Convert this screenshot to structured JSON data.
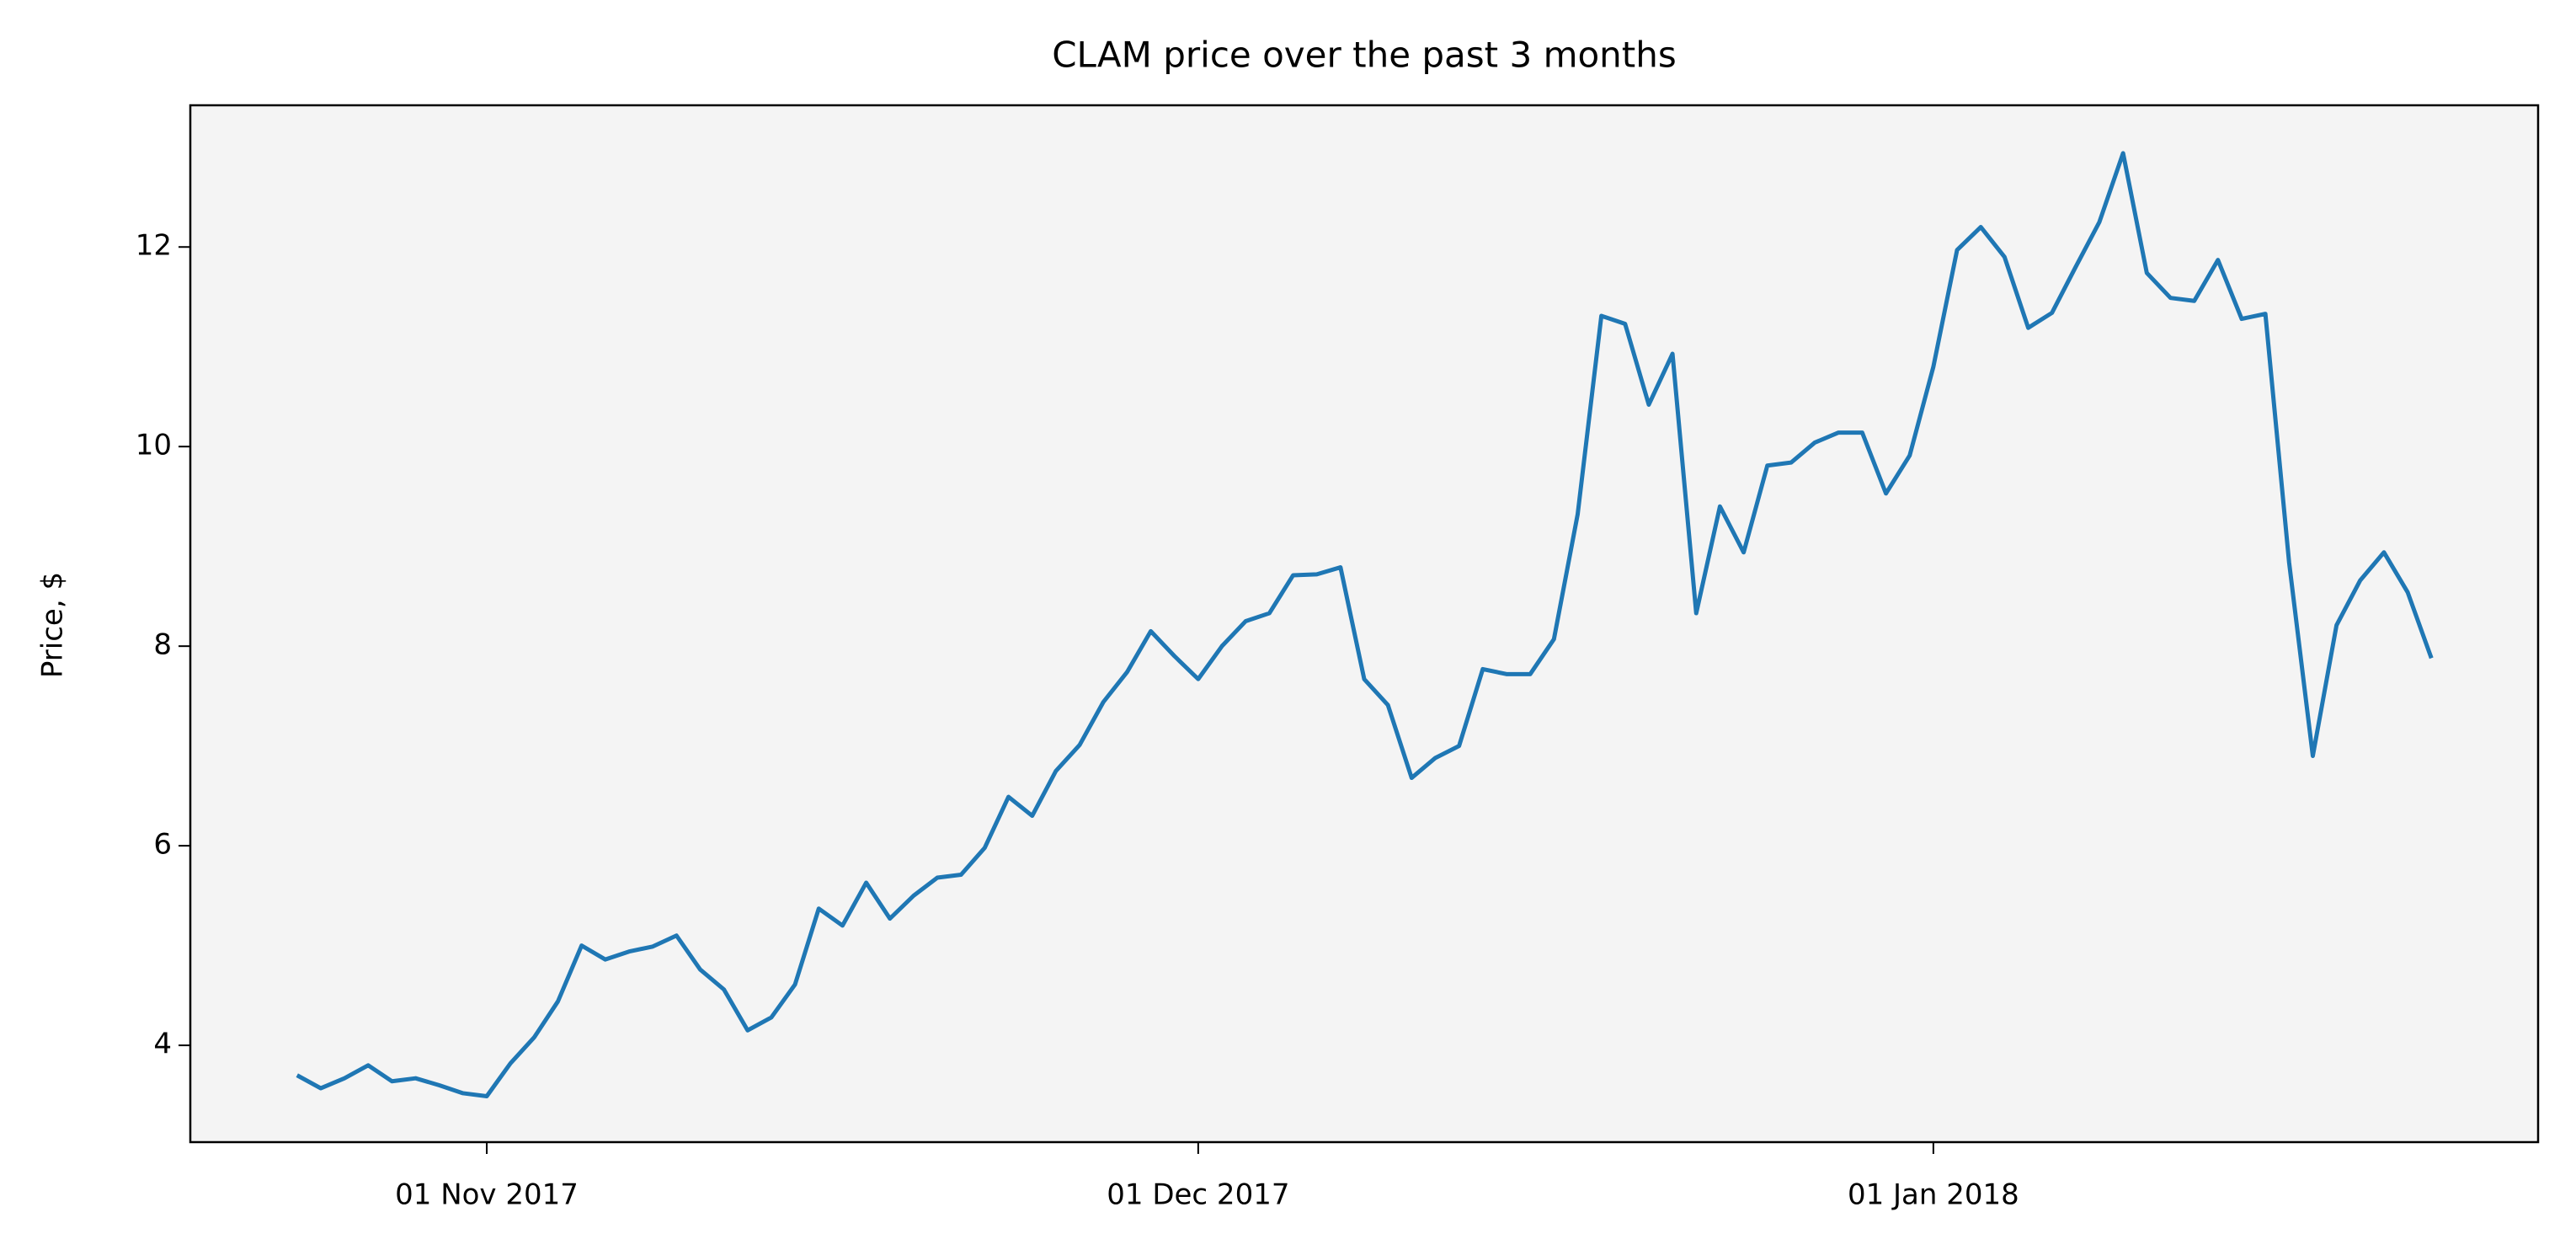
{
  "chart_data": {
    "type": "line",
    "title": "CLAM price over the past 3 months",
    "ylabel": "Price, $",
    "x": [
      "2017-10-24",
      "2017-10-25",
      "2017-10-26",
      "2017-10-27",
      "2017-10-28",
      "2017-10-29",
      "2017-10-30",
      "2017-10-31",
      "2017-11-01",
      "2017-11-02",
      "2017-11-03",
      "2017-11-04",
      "2017-11-05",
      "2017-11-06",
      "2017-11-07",
      "2017-11-08",
      "2017-11-09",
      "2017-11-10",
      "2017-11-11",
      "2017-11-12",
      "2017-11-13",
      "2017-11-14",
      "2017-11-15",
      "2017-11-16",
      "2017-11-17",
      "2017-11-18",
      "2017-11-19",
      "2017-11-20",
      "2017-11-21",
      "2017-11-22",
      "2017-11-23",
      "2017-11-24",
      "2017-11-25",
      "2017-11-26",
      "2017-11-27",
      "2017-11-28",
      "2017-11-29",
      "2017-11-30",
      "2017-12-01",
      "2017-12-02",
      "2017-12-03",
      "2017-12-04",
      "2017-12-05",
      "2017-12-06",
      "2017-12-07",
      "2017-12-08",
      "2017-12-09",
      "2017-12-10",
      "2017-12-11",
      "2017-12-12",
      "2017-12-13",
      "2017-12-14",
      "2017-12-15",
      "2017-12-16",
      "2017-12-17",
      "2017-12-18",
      "2017-12-19",
      "2017-12-20",
      "2017-12-21",
      "2017-12-22",
      "2017-12-23",
      "2017-12-24",
      "2017-12-25",
      "2017-12-26",
      "2017-12-27",
      "2017-12-28",
      "2017-12-29",
      "2017-12-30",
      "2017-12-31",
      "2018-01-01",
      "2018-01-02",
      "2018-01-03",
      "2018-01-04",
      "2018-01-05",
      "2018-01-06",
      "2018-01-07",
      "2018-01-08",
      "2018-01-09",
      "2018-01-10",
      "2018-01-11",
      "2018-01-12",
      "2018-01-13",
      "2018-01-14",
      "2018-01-15",
      "2018-01-16",
      "2018-01-17",
      "2018-01-18",
      "2018-01-19",
      "2018-01-20",
      "2018-01-21",
      "2018-01-22"
    ],
    "values": [
      3.7,
      3.57,
      3.67,
      3.8,
      3.64,
      3.67,
      3.6,
      3.52,
      3.49,
      3.82,
      4.08,
      4.44,
      5.0,
      4.86,
      4.94,
      4.99,
      5.1,
      4.76,
      4.56,
      4.15,
      4.28,
      4.61,
      5.37,
      5.2,
      5.63,
      5.27,
      5.5,
      5.68,
      5.71,
      5.98,
      6.49,
      6.3,
      6.75,
      7.01,
      7.44,
      7.74,
      8.15,
      7.9,
      7.67,
      8.0,
      8.25,
      8.33,
      8.71,
      8.72,
      8.79,
      7.67,
      7.41,
      6.68,
      6.88,
      7.0,
      7.77,
      7.72,
      7.72,
      8.07,
      9.32,
      11.31,
      11.23,
      10.42,
      10.93,
      8.33,
      9.4,
      8.94,
      9.81,
      9.84,
      10.04,
      10.14,
      10.14,
      9.53,
      9.91,
      10.8,
      11.97,
      12.2,
      11.9,
      11.19,
      11.34,
      11.8,
      12.25,
      12.94,
      11.74,
      11.49,
      11.46,
      11.87,
      11.28,
      11.33,
      8.84,
      6.9,
      8.21,
      8.66,
      8.94,
      8.54,
      7.88
    ],
    "color": "#1f77b4",
    "xlim": [
      "2017-10-19T12:00:00Z",
      "2018-01-26T12:00:00Z"
    ],
    "xticks": [
      {
        "value": "2017-11-01",
        "label": "01 Nov 2017"
      },
      {
        "value": "2017-12-01",
        "label": "01 Dec 2017"
      },
      {
        "value": "2018-01-01",
        "label": "01 Jan 2018"
      }
    ],
    "ylim": [
      3.03,
      13.42
    ],
    "yticks": [
      4,
      6,
      8,
      10,
      12
    ],
    "grid": false
  }
}
